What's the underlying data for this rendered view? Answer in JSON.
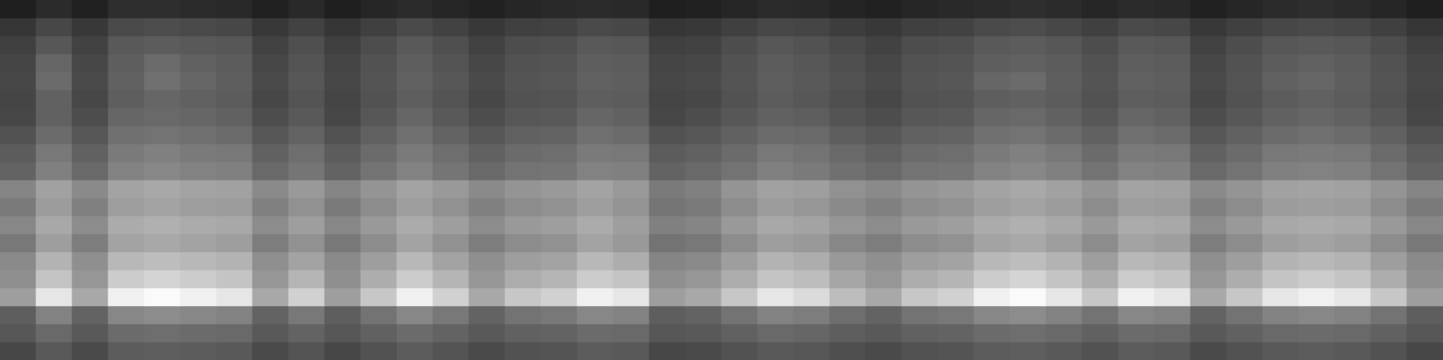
{
  "chart_data": {
    "type": "heatmap",
    "tick_labels": false,
    "value_range": [
      0,
      100
    ],
    "cells": [
      [
        12,
        17,
        13,
        18,
        18,
        17,
        16,
        13,
        16,
        12,
        15,
        17,
        15,
        13,
        15,
        16,
        17,
        16,
        12,
        13,
        15,
        17,
        16,
        14,
        13,
        15,
        16,
        17,
        18,
        17,
        15,
        17,
        16,
        13,
        15,
        17,
        18,
        17,
        15,
        12
      ],
      [
        21,
        28,
        22,
        29,
        30,
        29,
        28,
        22,
        26,
        21,
        25,
        29,
        26,
        22,
        25,
        26,
        29,
        28,
        21,
        22,
        25,
        28,
        27,
        24,
        22,
        25,
        26,
        29,
        30,
        28,
        25,
        29,
        28,
        22,
        25,
        28,
        29,
        28,
        25,
        21
      ],
      [
        25,
        34,
        26,
        35,
        36,
        35,
        34,
        26,
        31,
        25,
        30,
        35,
        31,
        26,
        30,
        31,
        35,
        34,
        25,
        26,
        30,
        34,
        32,
        29,
        26,
        30,
        31,
        35,
        36,
        34,
        30,
        35,
        34,
        26,
        30,
        34,
        35,
        34,
        30,
        25
      ],
      [
        27,
        40,
        28,
        37,
        42,
        38,
        36,
        28,
        33,
        27,
        32,
        37,
        33,
        28,
        32,
        33,
        37,
        36,
        27,
        28,
        32,
        36,
        34,
        31,
        28,
        32,
        33,
        37,
        38,
        36,
        32,
        37,
        36,
        28,
        32,
        36,
        38,
        36,
        32,
        27
      ],
      [
        28,
        42,
        29,
        38,
        44,
        40,
        37,
        29,
        34,
        28,
        33,
        38,
        34,
        29,
        33,
        34,
        38,
        37,
        28,
        29,
        33,
        37,
        35,
        32,
        29,
        33,
        34,
        40,
        42,
        37,
        33,
        38,
        37,
        29,
        33,
        38,
        40,
        37,
        33,
        28
      ],
      [
        27,
        38,
        28,
        37,
        40,
        38,
        36,
        28,
        33,
        27,
        32,
        37,
        33,
        28,
        32,
        33,
        37,
        36,
        27,
        28,
        32,
        36,
        34,
        31,
        28,
        32,
        33,
        37,
        38,
        36,
        32,
        37,
        36,
        28,
        32,
        36,
        38,
        36,
        32,
        27
      ],
      [
        28,
        38,
        30,
        40,
        41,
        40,
        38,
        30,
        35,
        28,
        34,
        40,
        35,
        30,
        34,
        35,
        40,
        38,
        28,
        30,
        34,
        38,
        37,
        33,
        30,
        34,
        35,
        40,
        41,
        38,
        34,
        40,
        38,
        30,
        34,
        38,
        40,
        38,
        34,
        28
      ],
      [
        32,
        42,
        34,
        44,
        45,
        44,
        42,
        34,
        39,
        32,
        38,
        44,
        39,
        34,
        38,
        39,
        44,
        42,
        32,
        34,
        38,
        42,
        41,
        37,
        34,
        38,
        39,
        44,
        45,
        42,
        38,
        44,
        42,
        34,
        38,
        42,
        44,
        42,
        38,
        32
      ],
      [
        36,
        47,
        38,
        48,
        50,
        48,
        47,
        38,
        43,
        36,
        42,
        48,
        43,
        38,
        42,
        43,
        48,
        47,
        36,
        38,
        42,
        47,
        45,
        41,
        38,
        42,
        43,
        48,
        50,
        47,
        42,
        48,
        47,
        38,
        42,
        47,
        48,
        47,
        42,
        36
      ],
      [
        39,
        50,
        41,
        51,
        53,
        51,
        50,
        41,
        46,
        39,
        45,
        51,
        46,
        41,
        45,
        46,
        51,
        50,
        39,
        41,
        45,
        50,
        48,
        44,
        41,
        45,
        46,
        51,
        53,
        50,
        45,
        51,
        50,
        41,
        45,
        50,
        51,
        50,
        45,
        39
      ],
      [
        52,
        63,
        54,
        64,
        66,
        64,
        63,
        54,
        60,
        52,
        58,
        64,
        60,
        54,
        58,
        60,
        64,
        60,
        48,
        50,
        58,
        63,
        62,
        57,
        54,
        58,
        60,
        64,
        66,
        63,
        58,
        64,
        63,
        54,
        58,
        63,
        64,
        63,
        58,
        52
      ],
      [
        48,
        61,
        50,
        62,
        64,
        62,
        61,
        50,
        57,
        48,
        55,
        62,
        57,
        50,
        55,
        57,
        62,
        58,
        46,
        48,
        55,
        61,
        59,
        54,
        50,
        55,
        57,
        62,
        64,
        61,
        55,
        62,
        61,
        50,
        55,
        61,
        62,
        61,
        55,
        48
      ],
      [
        53,
        66,
        55,
        67,
        69,
        67,
        66,
        55,
        62,
        53,
        60,
        67,
        62,
        55,
        60,
        62,
        67,
        62,
        50,
        52,
        60,
        66,
        64,
        59,
        55,
        60,
        62,
        67,
        69,
        66,
        60,
        67,
        66,
        55,
        60,
        66,
        67,
        66,
        60,
        53
      ],
      [
        47,
        62,
        49,
        64,
        66,
        64,
        62,
        49,
        57,
        47,
        55,
        64,
        57,
        49,
        55,
        57,
        64,
        60,
        45,
        47,
        55,
        62,
        60,
        53,
        49,
        55,
        57,
        64,
        66,
        62,
        55,
        64,
        62,
        49,
        55,
        62,
        64,
        62,
        55,
        47
      ],
      [
        54,
        70,
        56,
        72,
        74,
        72,
        70,
        56,
        64,
        54,
        62,
        72,
        64,
        56,
        62,
        64,
        72,
        68,
        52,
        54,
        62,
        70,
        68,
        60,
        56,
        62,
        64,
        72,
        74,
        70,
        62,
        72,
        70,
        56,
        62,
        70,
        72,
        70,
        62,
        54
      ],
      [
        56,
        77,
        59,
        80,
        83,
        80,
        77,
        59,
        71,
        56,
        68,
        80,
        71,
        59,
        68,
        71,
        80,
        77,
        56,
        59,
        68,
        77,
        74,
        65,
        59,
        68,
        71,
        80,
        83,
        77,
        68,
        80,
        77,
        59,
        68,
        77,
        80,
        77,
        68,
        56
      ],
      [
        62,
        90,
        66,
        94,
        98,
        94,
        90,
        66,
        82,
        62,
        78,
        94,
        82,
        66,
        78,
        82,
        94,
        90,
        62,
        66,
        78,
        90,
        86,
        74,
        66,
        78,
        82,
        94,
        98,
        90,
        78,
        94,
        90,
        66,
        78,
        90,
        94,
        90,
        78,
        62
      ],
      [
        37,
        51,
        39,
        53,
        55,
        53,
        51,
        39,
        47,
        37,
        45,
        53,
        47,
        39,
        45,
        47,
        53,
        51,
        37,
        39,
        45,
        51,
        49,
        43,
        39,
        45,
        47,
        53,
        55,
        51,
        45,
        53,
        51,
        39,
        45,
        51,
        53,
        51,
        45,
        37
      ],
      [
        34,
        41,
        35,
        42,
        43,
        42,
        41,
        35,
        39,
        34,
        38,
        42,
        39,
        35,
        38,
        39,
        42,
        41,
        34,
        35,
        38,
        41,
        40,
        37,
        35,
        38,
        39,
        42,
        43,
        41,
        38,
        42,
        41,
        35,
        38,
        41,
        42,
        41,
        38,
        34
      ],
      [
        28,
        35,
        29,
        36,
        37,
        36,
        35,
        29,
        33,
        28,
        32,
        36,
        33,
        29,
        32,
        33,
        36,
        35,
        28,
        29,
        32,
        35,
        34,
        31,
        29,
        32,
        33,
        36,
        37,
        35,
        32,
        36,
        35,
        29,
        32,
        35,
        36,
        35,
        32,
        28
      ]
    ]
  }
}
